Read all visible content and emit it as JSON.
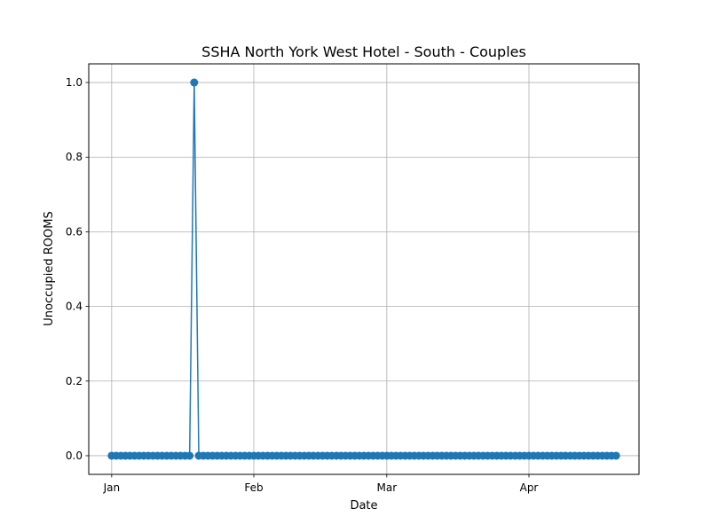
{
  "chart_data": {
    "type": "line",
    "title": "SSHA North York West Hotel - South - Couples",
    "xlabel": "Date",
    "ylabel": "Unoccupied ROOMS",
    "x_start": "2024-01-01",
    "x_end": "2024-04-20",
    "xlim": [
      "2023-12-27",
      "2024-04-25"
    ],
    "ylim": [
      -0.05,
      1.05
    ],
    "x_ticks": [
      {
        "label": "Jan",
        "date": "2024-01-01"
      },
      {
        "label": "Feb",
        "date": "2024-02-01"
      },
      {
        "label": "Mar",
        "date": "2024-03-01"
      },
      {
        "label": "Apr",
        "date": "2024-04-01"
      }
    ],
    "y_ticks": [
      "0.0",
      "0.2",
      "0.4",
      "0.6",
      "0.8",
      "1.0"
    ],
    "grid": true,
    "series": [
      {
        "color": "#1f77b4",
        "marker": "circle",
        "points": [
          {
            "date": "2024-01-19",
            "value": 1
          }
        ],
        "default_value": 0
      }
    ]
  }
}
